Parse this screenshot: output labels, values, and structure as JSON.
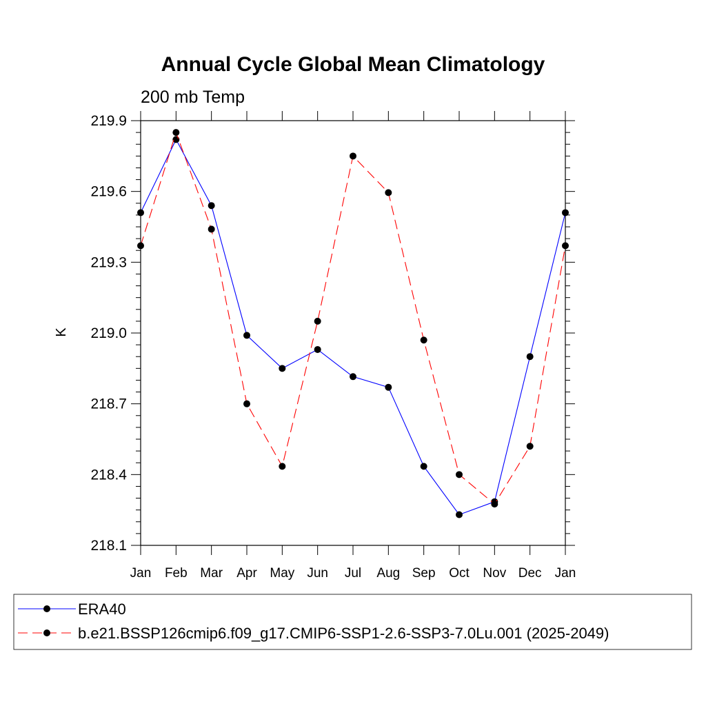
{
  "chart_data": {
    "type": "line",
    "title": "Annual Cycle Global Mean Climatology",
    "subtitle": "200 mb Temp",
    "ylabel": "K",
    "xlabel": "",
    "categories": [
      "Jan",
      "Feb",
      "Mar",
      "Apr",
      "May",
      "Jun",
      "Jul",
      "Aug",
      "Sep",
      "Oct",
      "Nov",
      "Dec",
      "Jan"
    ],
    "yticks": [
      "219.9",
      "219.6",
      "219.3",
      "219.0",
      "218.7",
      "218.4",
      "218.1"
    ],
    "ylim": [
      218.1,
      219.9
    ],
    "grid": false,
    "legend_position": "bottom",
    "series": [
      {
        "name": "ERA40",
        "color": "#0000ff",
        "dash": "solid",
        "marker": "filled-circle",
        "values": [
          219.51,
          219.82,
          219.54,
          218.99,
          218.85,
          218.93,
          218.815,
          218.77,
          218.435,
          218.23,
          218.285,
          218.9,
          219.51
        ]
      },
      {
        "name": "b.e21.BSSP126cmip6.f09_g17.CMIP6-SSP1-2.6-SSP3-7.0Lu.001 (2025-2049)",
        "color": "#ff0000",
        "dash": "dashed",
        "marker": "filled-circle",
        "values": [
          219.37,
          219.85,
          219.44,
          218.7,
          218.435,
          219.05,
          219.75,
          219.595,
          218.97,
          218.4,
          218.275,
          218.52,
          219.37
        ]
      }
    ]
  }
}
